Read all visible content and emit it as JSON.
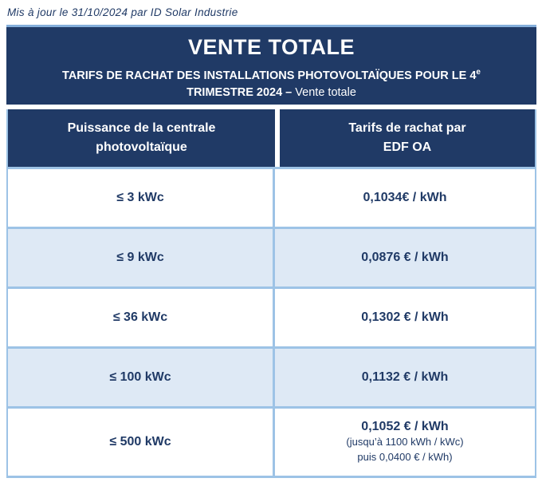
{
  "page": {
    "updated_text": "Mis à jour le 31/10/2024 par ID Solar Industrie"
  },
  "banner": {
    "title": "VENTE TOTALE",
    "subtitle_line1": "TARIFS DE RACHAT DES INSTALLATIONS PHOTOVOLTAÏQUES POUR LE 4",
    "subtitle_line1_sup": "e",
    "subtitle_line2_bold": "TRIMESTRE 2024 –",
    "subtitle_line2_regular": " Vente totale"
  },
  "table": {
    "headers": [
      {
        "line1": "Puissance de la centrale",
        "line2": "photovoltaïque"
      },
      {
        "line1": "Tarifs de rachat par",
        "line2": "EDF OA"
      }
    ],
    "rows": [
      {
        "power": "≤ 3 kWc",
        "tariff": "0,1034€ / kWh"
      },
      {
        "power": "≤ 9 kWc",
        "tariff": "0,0876 € / kWh"
      },
      {
        "power": "≤ 36 kWc",
        "tariff": "0,1302 € / kWh"
      },
      {
        "power": "≤ 100 kWc",
        "tariff": "0,1132 € / kWh"
      },
      {
        "power": "≤ 500 kWc",
        "tariff": "0,1052 € / kWh",
        "note1": "(jusqu’à 1100 kWh / kWc)",
        "note2": "puis 0,0400 € / kWh)"
      }
    ]
  },
  "colors": {
    "navy": "#203A66",
    "row_alt_background": "#DEE9F5",
    "table_border": "#9DC3E6",
    "banner_top_border": "#85AFDB",
    "header_text": "#FFFFFF",
    "body_text": "#203A66"
  }
}
